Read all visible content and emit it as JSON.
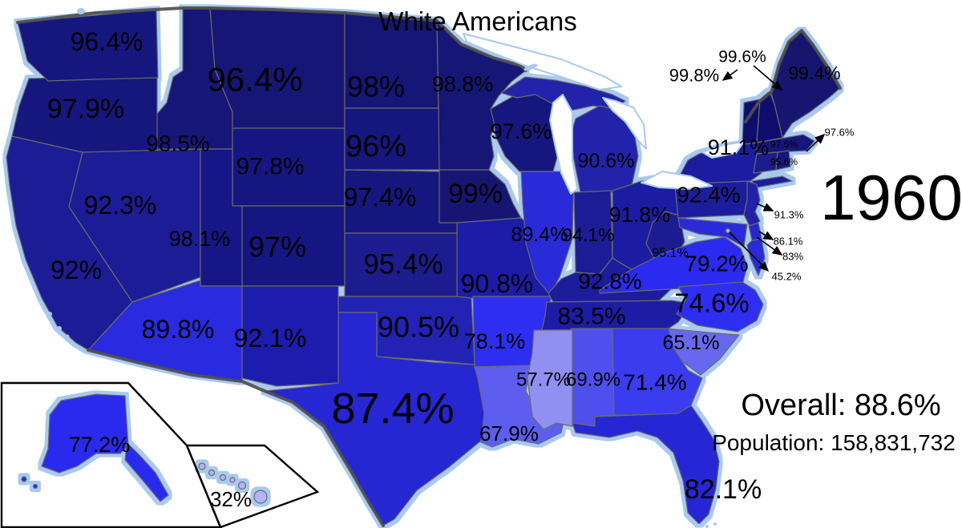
{
  "title": "White Americans",
  "year": "1960",
  "summary": {
    "overall": "Overall: 88.6%",
    "population": "Population: 158,831,732"
  },
  "colors": {
    "label_text": "#000000",
    "coast_glow": "#aac9ee",
    "country_shadow": "#4f4f4f",
    "state_border": "#6a6a6a",
    "inset_border": "#000000"
  },
  "chart_data": {
    "type": "choropleth",
    "metric": "Percent White Americans by state",
    "year": "1960",
    "overall": "88.6%",
    "population": "158,831,732",
    "legend_position": "none",
    "states": [
      {
        "id": "ca",
        "name": "California",
        "value": "92%",
        "color": "#1b1b96"
      },
      {
        "id": "or",
        "name": "Oregon",
        "value": "97.9%",
        "color": "#15157f"
      },
      {
        "id": "wa",
        "name": "Washington",
        "value": "96.4%",
        "color": "#15157f"
      },
      {
        "id": "nv",
        "name": "Nevada",
        "value": "92.3%",
        "color": "#1b1b96"
      },
      {
        "id": "id",
        "name": "Idaho",
        "value": "98.5%",
        "color": "#141479"
      },
      {
        "id": "mt",
        "name": "Montana",
        "value": "96.4%",
        "color": "#131376"
      },
      {
        "id": "wy",
        "name": "Wyoming",
        "value": "97.8%",
        "color": "#161682"
      },
      {
        "id": "ut",
        "name": "Utah",
        "value": "98.1%",
        "color": "#171788"
      },
      {
        "id": "co",
        "name": "Colorado",
        "value": "97%",
        "color": "#161682"
      },
      {
        "id": "az",
        "name": "Arizona",
        "value": "89.8%",
        "color": "#2a2ae0"
      },
      {
        "id": "nm",
        "name": "New Mexico",
        "value": "92.1%",
        "color": "#1d1dae"
      },
      {
        "id": "nd",
        "name": "North Dakota",
        "value": "98%",
        "color": "#131376"
      },
      {
        "id": "sd",
        "name": "South Dakota",
        "value": "96%",
        "color": "#15157f"
      },
      {
        "id": "ne",
        "name": "Nebraska",
        "value": "97.4%",
        "color": "#15157f"
      },
      {
        "id": "ks",
        "name": "Kansas",
        "value": "95.4%",
        "color": "#1a1a8e"
      },
      {
        "id": "ok",
        "name": "Oklahoma",
        "value": "90.5%",
        "color": "#2323b4"
      },
      {
        "id": "tx",
        "name": "Texas",
        "value": "87.4%",
        "color": "#2828d2"
      },
      {
        "id": "mn",
        "name": "Minnesota",
        "value": "98.8%",
        "color": "#131376"
      },
      {
        "id": "ia",
        "name": "Iowa",
        "value": "99%",
        "color": "#121272"
      },
      {
        "id": "mo",
        "name": "Missouri",
        "value": "90.8%",
        "color": "#1f1fa8"
      },
      {
        "id": "ar",
        "name": "Arkansas",
        "value": "78.1%",
        "color": "#2d2df2"
      },
      {
        "id": "la",
        "name": "Louisiana",
        "value": "67.9%",
        "color": "#5d5def"
      },
      {
        "id": "wi",
        "name": "Wisconsin",
        "value": "97.6%",
        "color": "#15157f"
      },
      {
        "id": "il",
        "name": "Illinois",
        "value": "89.4%",
        "color": "#2b2bd8"
      },
      {
        "id": "mi",
        "name": "Michigan",
        "value": "90.6%",
        "color": "#2020aa"
      },
      {
        "id": "in",
        "name": "Indiana",
        "value": "94.1%",
        "color": "#1b1b96"
      },
      {
        "id": "oh",
        "name": "Ohio",
        "value": "91.8%",
        "color": "#1e1ea2"
      },
      {
        "id": "ky",
        "name": "Kentucky",
        "value": "92.8%",
        "color": "#1c1c9c"
      },
      {
        "id": "wv",
        "name": "West Virginia",
        "value": "95.1%",
        "color": "#1a1a90"
      },
      {
        "id": "pa",
        "name": "Pennsylvania",
        "value": "92.4%",
        "color": "#1d1d9e"
      },
      {
        "id": "ny",
        "name": "New York",
        "value": "91.1%",
        "color": "#1e1ea0"
      },
      {
        "id": "nj",
        "name": "New Jersey",
        "value": "91.3%",
        "color": "#2020a8"
      },
      {
        "id": "md",
        "name": "Maryland",
        "value": "83%",
        "color": "#2c2cd8"
      },
      {
        "id": "de",
        "name": "Delaware",
        "value": "86.1%",
        "color": "#2828cc"
      },
      {
        "id": "va",
        "name": "Virginia",
        "value": "79.2%",
        "color": "#2b2bf0"
      },
      {
        "id": "tn",
        "name": "Tennessee",
        "value": "83.5%",
        "color": "#1d1da4"
      },
      {
        "id": "nc",
        "name": "North Carolina",
        "value": "74.6%",
        "color": "#2d2df2"
      },
      {
        "id": "sc",
        "name": "South Carolina",
        "value": "65.1%",
        "color": "#6868ee"
      },
      {
        "id": "ga",
        "name": "Georgia",
        "value": "71.4%",
        "color": "#3a3af0"
      },
      {
        "id": "al",
        "name": "Alabama",
        "value": "69.9%",
        "color": "#5050ee"
      },
      {
        "id": "ms",
        "name": "Mississippi",
        "value": "57.7%",
        "color": "#9090f2"
      },
      {
        "id": "fl",
        "name": "Florida",
        "value": "82.1%",
        "color": "#2525d4"
      },
      {
        "id": "me",
        "name": "Maine",
        "value": "99.4%",
        "color": "#121270"
      },
      {
        "id": "vt",
        "name": "Vermont",
        "value": "99.8%",
        "color": "#11116e"
      },
      {
        "id": "nh",
        "name": "New Hampshire",
        "value": "99.6%",
        "color": "#11116e"
      },
      {
        "id": "ma",
        "name": "Massachusetts",
        "value": "97.6%",
        "color": "#15157f"
      },
      {
        "id": "ct",
        "name": "Connecticut",
        "value": "95.6%",
        "color": "#1a1a8e"
      },
      {
        "id": "ri",
        "name": "Rhode Island",
        "value": "97.6%",
        "color": "#15157f"
      },
      {
        "id": "dc",
        "name": "District of Columbia",
        "value": "45.2%",
        "color": "#b0b0f4"
      },
      {
        "id": "ak",
        "name": "Alaska",
        "value": "77.2%",
        "color": "#2b2bee"
      },
      {
        "id": "hi",
        "name": "Hawaii",
        "value": "32%",
        "color": "#b3b3f6"
      }
    ]
  }
}
